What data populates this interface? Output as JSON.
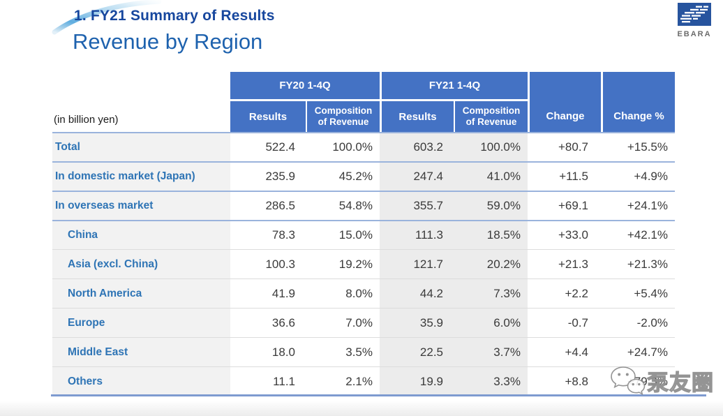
{
  "slide": {
    "section_title": "1. FY21 Summary of Results",
    "page_title": "Revenue by Region"
  },
  "logo": {
    "text": "EBARA"
  },
  "table": {
    "unit_label": "(in billion yen)",
    "header": {
      "fy20_group": "FY20 1-4Q",
      "fy21_group": "FY21 1-4Q",
      "fy20_results": "Results",
      "fy20_composition": "Composition of Revenue",
      "fy21_results": "Results",
      "fy21_composition": "Composition of Revenue",
      "change": "Change",
      "change_pct": "Change %"
    },
    "rows": [
      {
        "label": "Total",
        "level": 0,
        "fy20_results": "522.4",
        "fy20_comp": "100.0%",
        "fy21_results": "603.2",
        "fy21_comp": "100.0%",
        "change": "+80.7",
        "change_pct": "+15.5%"
      },
      {
        "label": "In domestic market (Japan)",
        "level": 0,
        "fy20_results": "235.9",
        "fy20_comp": "45.2%",
        "fy21_results": "247.4",
        "fy21_comp": "41.0%",
        "change": "+11.5",
        "change_pct": "+4.9%"
      },
      {
        "label": "In overseas market",
        "level": 0,
        "fy20_results": "286.5",
        "fy20_comp": "54.8%",
        "fy21_results": "355.7",
        "fy21_comp": "59.0%",
        "change": "+69.1",
        "change_pct": "+24.1%"
      },
      {
        "label": "China",
        "level": 1,
        "fy20_results": "78.3",
        "fy20_comp": "15.0%",
        "fy21_results": "111.3",
        "fy21_comp": "18.5%",
        "change": "+33.0",
        "change_pct": "+42.1%"
      },
      {
        "label": "Asia (excl. China)",
        "level": 1,
        "fy20_results": "100.3",
        "fy20_comp": "19.2%",
        "fy21_results": "121.7",
        "fy21_comp": "20.2%",
        "change": "+21.3",
        "change_pct": "+21.3%"
      },
      {
        "label": "North America",
        "level": 1,
        "fy20_results": "41.9",
        "fy20_comp": "8.0%",
        "fy21_results": "44.2",
        "fy21_comp": "7.3%",
        "change": "+2.2",
        "change_pct": "+5.4%"
      },
      {
        "label": "Europe",
        "level": 1,
        "fy20_results": "36.6",
        "fy20_comp": "7.0%",
        "fy21_results": "35.9",
        "fy21_comp": "6.0%",
        "change": "-0.7",
        "change_pct": "-2.0%"
      },
      {
        "label": "Middle East",
        "level": 1,
        "fy20_results": "18.0",
        "fy20_comp": "3.5%",
        "fy21_results": "22.5",
        "fy21_comp": "3.7%",
        "change": "+4.4",
        "change_pct": "+24.7%"
      },
      {
        "label": "Others",
        "level": 1,
        "fy20_results": "11.1",
        "fy20_comp": "2.1%",
        "fy21_results": "19.9",
        "fy21_comp": "3.3%",
        "change": "+8.8",
        "change_pct": "+79.3%"
      }
    ]
  },
  "watermark": {
    "icon": "wechat-icon",
    "text": "泵友圈"
  },
  "colors": {
    "header_blue": "#4472C4",
    "label_blue": "#2E74B5",
    "section_title_blue": "#17479E",
    "page_title_blue": "#1E62AE",
    "separator_blue": "#9AB3DC",
    "fy21_column_gray": "#ECECEC",
    "label_column_gray": "#F2F2F2",
    "logo_blue": "#27549E"
  }
}
